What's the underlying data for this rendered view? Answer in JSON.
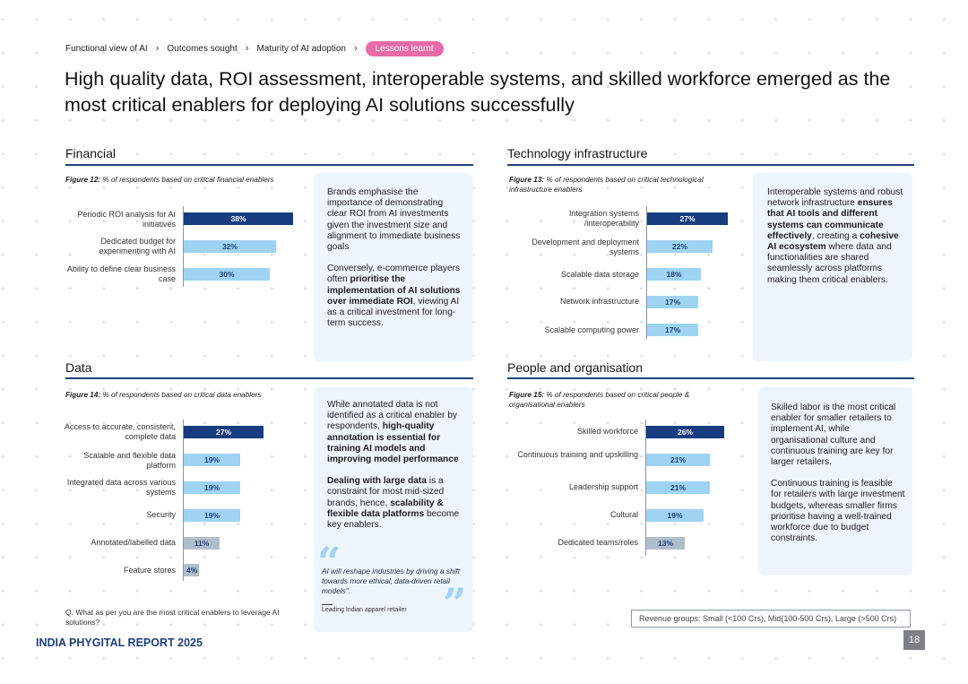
{
  "breadcrumb": [
    {
      "label": "Functional view of AI"
    },
    {
      "label": "Outcomes sought"
    },
    {
      "label": "Maturity of AI adoption"
    },
    {
      "label": "Lessons learnt"
    }
  ],
  "page_title": "High quality data, ROI assessment, interoperable systems, and skilled workforce emerged as the most critical enablers for deploying AI solutions successfully",
  "sections": {
    "financial": {
      "title": "Financial",
      "figure_label": "Figure 12:",
      "figure_caption": "% of respondents based on critical financial enablers",
      "note": {
        "p1": "Brands emphasise the importance of demonstrating clear ROI from AI investments given the investment size and alignment to immediate business goals",
        "p2_a": "Conversely, e-commerce players often ",
        "p2_b": "prioritise the implementation of AI solutions over immediate ROI",
        "p2_c": ", viewing AI as a critical investment for long-term success."
      }
    },
    "technology": {
      "title": "Technology infrastructure",
      "figure_label": "Figure 13:",
      "figure_caption": "% of respondents based on critical technological infrastructure enablers",
      "note": {
        "a": "Interoperable systems and robust network infrastructure ",
        "b": "ensures that AI tools and different systems can communicate effectively",
        "c": ", creating a ",
        "d": "cohesive AI ecosystem",
        "e": " where data and functionalities are shared seamlessly across platforms making them critical enablers."
      }
    },
    "data": {
      "title": "Data",
      "figure_label": "Figure 14:",
      "figure_caption": "% of respondents based on critical data enablers",
      "note": {
        "p1_a": "While annotated data is not identified as a critical enabler by respondents, ",
        "p1_b": "high-quality annotation is essential for training AI models and improving model performance",
        "p2_a": "Dealing with large data",
        "p2_b": " is a constraint for most mid-sized brands, hence, ",
        "p2_c": "scalability & flexible data platforms",
        "p2_d": " become key enablers."
      },
      "quote": {
        "text": "AI will reshape industries by driving a shift towards more ethical, data-driven retail models\".",
        "source": "Leading Indian apparel retailer"
      }
    },
    "people": {
      "title": "People and organisation",
      "figure_label": "Figure 15:",
      "figure_caption": "% of respondents based on critical people & organisational enablers",
      "note": {
        "p1": "Skilled labor is the most critical enabler for smaller retailers to implement AI, while organisational culture and continuous training are key for larger retailers.",
        "p2": "Continuous training is feasible for retailers with large investment budgets, whereas smaller firms prioritise having a well-trained workforce due to budget constraints."
      }
    }
  },
  "chart_data": [
    {
      "type": "bar",
      "orientation": "horizontal",
      "title": "Figure 12: % of respondents based on critical financial enablers",
      "categories": [
        "Periodic ROI analysis for AI initiatives",
        "Dedicated budget for experimenting with AI",
        "Ability to define clear business case"
      ],
      "values": [
        38,
        32,
        30
      ],
      "value_labels": [
        "38%",
        "32%",
        "30%"
      ],
      "unit": "%"
    },
    {
      "type": "bar",
      "orientation": "horizontal",
      "title": "Figure 13: % of respondents based on critical technological infrastructure enablers",
      "categories": [
        "Integration systems /interoperability",
        "Development and deployment systems",
        "Scalable data storage",
        "Network infrastructure",
        "Scalable computing power"
      ],
      "values": [
        27,
        22,
        18,
        17,
        17
      ],
      "value_labels": [
        "27%",
        "22%",
        "18%",
        "17%",
        "17%"
      ],
      "unit": "%"
    },
    {
      "type": "bar",
      "orientation": "horizontal",
      "title": "Figure 14: % of respondents based on critical data enablers",
      "categories": [
        "Access to accurate, consistent, complete data",
        "Scalable and flexible data platform",
        "Integrated data across various systems",
        "Security",
        "Annotated/labelled data",
        "Feature stores"
      ],
      "values": [
        27,
        19,
        19,
        19,
        11,
        4
      ],
      "value_labels": [
        "27%",
        "19%",
        "19%",
        "19%",
        "11%",
        "4%"
      ],
      "unit": "%"
    },
    {
      "type": "bar",
      "orientation": "horizontal",
      "title": "Figure 15: % of respondents based on critical people & organisational enablers",
      "categories": [
        "Skilled workforce",
        "Continuous training and upskilling",
        "Leadership support",
        "Cultural",
        "Dedicated teams/roles"
      ],
      "values": [
        26,
        21,
        21,
        19,
        13
      ],
      "value_labels": [
        "26%",
        "21%",
        "21%",
        "19%",
        "13%"
      ],
      "unit": "%"
    }
  ],
  "question": "Q. What as per you are the most critical enablers to leverage AI solutions?",
  "legend": "Revenue groups: Small (<100 Crs), Mid(100-500 Crs), Large (>500 Crs)",
  "footer": {
    "brand": "INDIA PHYGITAL REPORT 2025",
    "page_number": "18"
  },
  "colors": {
    "navy": "#173d80",
    "light_blue": "#9ed3f4",
    "gray_bar": "#b0bdcb",
    "pink": "#e86aa6",
    "note_bg": "#eef5fc"
  }
}
